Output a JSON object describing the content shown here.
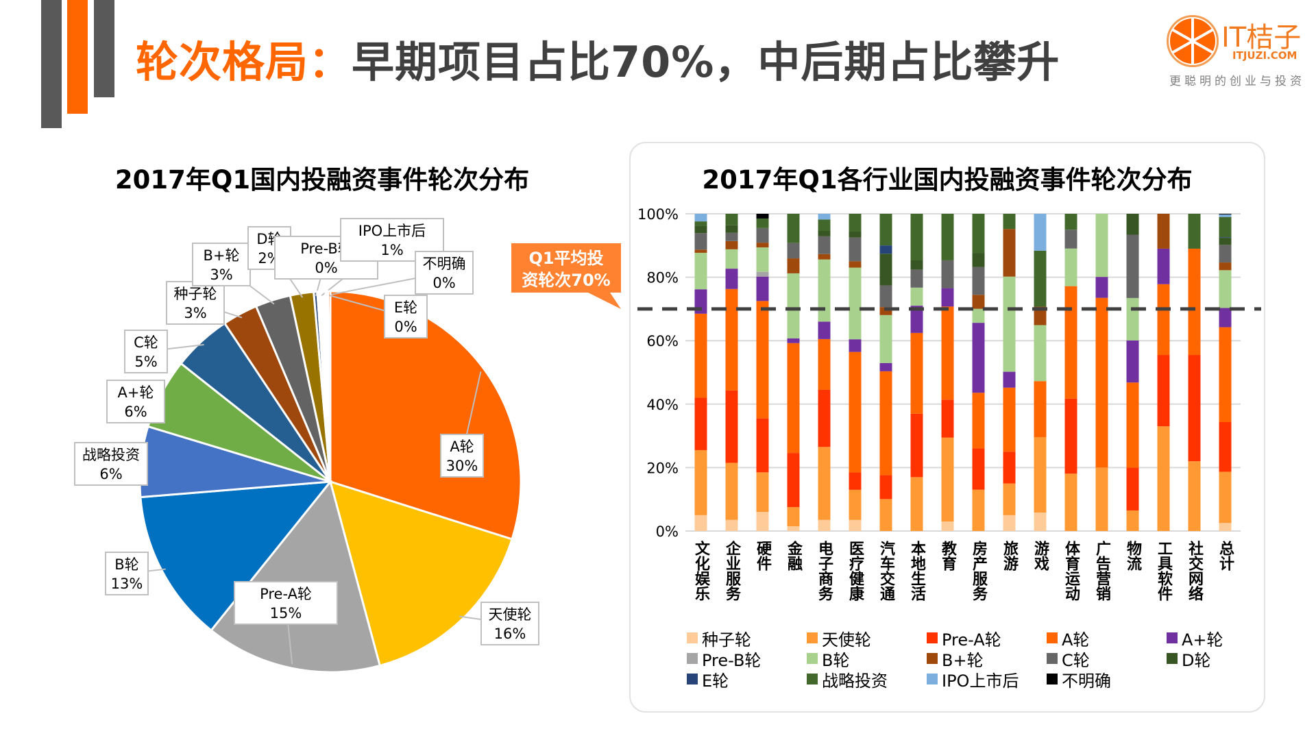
{
  "header": {
    "title_part1": "轮次格局：",
    "title_part2": "早期项目占比70%，中后期占比攀升",
    "accent_color": "#ff6600",
    "dark_color": "#404040"
  },
  "logo": {
    "name": "IT桔子",
    "url": "ITJUZI.COM",
    "slogan": "更聪明的创业与投资",
    "icon": "orange-slice-icon"
  },
  "callout": {
    "line1": "Q1平均投",
    "line2": "资轮次70%",
    "color": "#fe8230"
  },
  "chart_data": [
    {
      "type": "pie",
      "title": "2017年Q1国内投融资事件轮次分布",
      "slices": [
        {
          "label": "A轮",
          "value": 30,
          "display": "30%",
          "color": "#ff6600"
        },
        {
          "label": "天使轮",
          "value": 16,
          "display": "16%",
          "color": "#ffc000"
        },
        {
          "label": "Pre-A轮",
          "value": 15,
          "display": "15%",
          "color": "#a5a5a5"
        },
        {
          "label": "B轮",
          "value": 13,
          "display": "13%",
          "color": "#0070c0"
        },
        {
          "label": "战略投资",
          "value": 6,
          "display": "6%",
          "color": "#4472c4"
        },
        {
          "label": "A+轮",
          "value": 6,
          "display": "6%",
          "color": "#70ad47"
        },
        {
          "label": "C轮",
          "value": 5,
          "display": "5%",
          "color": "#255e91"
        },
        {
          "label": "种子轮",
          "value": 3,
          "display": "3%",
          "color": "#9e480e"
        },
        {
          "label": "B+轮",
          "value": 3,
          "display": "3%",
          "color": "#636363"
        },
        {
          "label": "D轮",
          "value": 2,
          "display": "2%",
          "color": "#997300"
        },
        {
          "label": "Pre-B轮",
          "value": 0.3,
          "display": "0%",
          "color": "#264478"
        },
        {
          "label": "IPO上市后",
          "value": 0.7,
          "display": "1%",
          "color": "#ffffff"
        },
        {
          "label": "不明确",
          "value": 0.2,
          "display": "0%",
          "color": "#ffffff"
        },
        {
          "label": "E轮",
          "value": 0.2,
          "display": "0%",
          "color": "#ff6600"
        }
      ]
    },
    {
      "type": "bar",
      "stacked": true,
      "percent": true,
      "title": "2017年Q1各行业国内投融资事件轮次分布",
      "categories": [
        "文化娱乐",
        "企业服务",
        "硬件",
        "金融",
        "电子商务",
        "医疗健康",
        "汽车交通",
        "本地生活",
        "教育",
        "房产服务",
        "旅游",
        "游戏",
        "体育运动",
        "广告营销",
        "物流",
        "工具软件",
        "社交网络",
        "总计"
      ],
      "ylim": [
        0,
        100
      ],
      "yticks": [
        "0%",
        "20%",
        "40%",
        "60%",
        "80%",
        "100%"
      ],
      "reference_line": {
        "value": 70,
        "label": "Q1平均投资轮次70%",
        "style": "dashed"
      },
      "legend_position": "bottom",
      "series": [
        {
          "name": "种子轮",
          "color": "#ffcc99",
          "values": [
            5,
            3.5,
            6,
            1.5,
            3.5,
            3.5,
            0,
            0,
            3,
            0,
            5,
            5.5,
            0,
            0,
            0,
            0,
            0,
            2.5
          ]
        },
        {
          "name": "天使轮",
          "color": "#ff9933",
          "values": [
            20.5,
            18,
            12.5,
            6,
            23,
            9.5,
            10,
            17,
            26.5,
            13,
            10,
            22.5,
            18,
            20,
            6.5,
            33,
            22,
            16
          ]
        },
        {
          "name": "Pre-A轮",
          "color": "#ff3300",
          "values": [
            16.5,
            22.8,
            17,
            17,
            18,
            5.5,
            7.5,
            20,
            12,
            13,
            10,
            0,
            23.5,
            0,
            13.5,
            22.5,
            33.5,
            15.5
          ]
        },
        {
          "name": "A轮",
          "color": "#ff6600",
          "values": [
            26.5,
            32,
            37,
            34.5,
            16,
            38,
            32.5,
            25.5,
            29.4,
            17.5,
            20.2,
            16.7,
            35.3,
            53.5,
            26.9,
            22.3,
            33.5,
            29.6
          ]
        },
        {
          "name": "A+轮",
          "color": "#7030a0",
          "values": [
            7.7,
            6.4,
            7.7,
            1.5,
            5.5,
            4,
            2.6,
            8.6,
            5.8,
            22,
            5,
            0,
            0,
            6.6,
            13.3,
            11.2,
            0,
            6
          ]
        },
        {
          "name": "Pre-B轮",
          "color": "#a5a5a5",
          "values": [
            0,
            0,
            1.5,
            0,
            0,
            0,
            0,
            0,
            0,
            0,
            0,
            0,
            0,
            0,
            0,
            0,
            0,
            0
          ]
        },
        {
          "name": "B轮",
          "color": "#a9d18e",
          "values": [
            11.5,
            6.1,
            7.7,
            20.4,
            19.6,
            22.6,
            15,
            5.7,
            0,
            4.4,
            30,
            16.7,
            11.8,
            19.9,
            13.4,
            0,
            0,
            11.8
          ]
        },
        {
          "name": "B+轮",
          "color": "#a0490c",
          "values": [
            1,
            2.6,
            1.5,
            4.7,
            1.7,
            2,
            2.5,
            0,
            0,
            4.4,
            15,
            5.5,
            0,
            0,
            0,
            11,
            0,
            2.4
          ]
        },
        {
          "name": "C轮",
          "color": "#666666",
          "values": [
            5.2,
            2.6,
            4.6,
            4.8,
            5.6,
            7.5,
            6.8,
            5.7,
            8.8,
            8.8,
            0,
            0,
            5.9,
            0,
            20,
            0,
            0,
            5.5
          ]
        },
        {
          "name": "D轮",
          "color": "#375623",
          "values": [
            2.4,
            2.4,
            0,
            0,
            1.7,
            2,
            9.9,
            2.9,
            0,
            4.4,
            0,
            0,
            0,
            0,
            6.6,
            0,
            0,
            2.2
          ]
        },
        {
          "name": "E轮",
          "color": "#264478",
          "values": [
            0,
            0,
            0,
            0,
            0,
            0,
            2.6,
            0,
            0,
            0,
            0,
            0,
            0,
            0,
            0,
            0,
            0,
            0.2
          ]
        },
        {
          "name": "战略投资",
          "color": "#43682b",
          "values": [
            1.3,
            3.6,
            3,
            9.2,
            3.6,
            5.5,
            9.9,
            14.7,
            14.7,
            12.3,
            4.8,
            16.7,
            5,
            0,
            0,
            0,
            11,
            6.3
          ]
        },
        {
          "name": "IPO上市后",
          "color": "#7cafdd",
          "values": [
            2.4,
            0,
            0,
            0,
            1.8,
            0,
            0,
            0,
            0,
            0,
            0,
            11,
            0,
            0,
            0,
            0,
            0,
            0.8
          ]
        },
        {
          "name": "不明确",
          "color": "#000000",
          "values": [
            0,
            0,
            1.5,
            0,
            0,
            0,
            0,
            0,
            0,
            0,
            0,
            0,
            0,
            0,
            0,
            0,
            0,
            0.2
          ]
        }
      ]
    }
  ]
}
